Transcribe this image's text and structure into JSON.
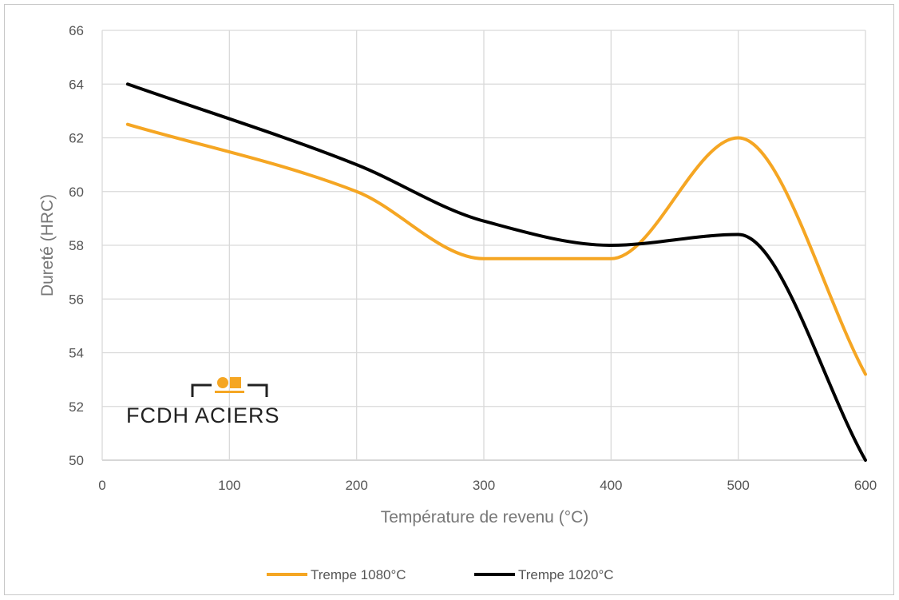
{
  "chart_data": {
    "type": "line",
    "xlabel": "Température de revenu (°C)",
    "ylabel": "Dureté (HRC)",
    "xlim": [
      0,
      600
    ],
    "ylim": [
      50,
      66
    ],
    "xticks": [
      0,
      100,
      200,
      300,
      400,
      500,
      600
    ],
    "yticks": [
      50,
      52,
      54,
      56,
      58,
      60,
      62,
      64,
      66
    ],
    "grid": true,
    "legend_position": "bottom",
    "series": [
      {
        "name": "Trempe 1080°C",
        "color": "#f5a623",
        "x": [
          20,
          200,
          300,
          400,
          500,
          600
        ],
        "y": [
          62.5,
          60,
          57.5,
          57.5,
          62,
          53.2
        ]
      },
      {
        "name": "Trempe 1020°C",
        "color": "#000000",
        "x": [
          20,
          200,
          300,
          400,
          500,
          600
        ],
        "y": [
          64,
          61,
          58.9,
          58,
          58.4,
          50
        ]
      }
    ]
  },
  "logo": {
    "text": "FCDH ACIERS",
    "accent_color": "#f5a623"
  }
}
